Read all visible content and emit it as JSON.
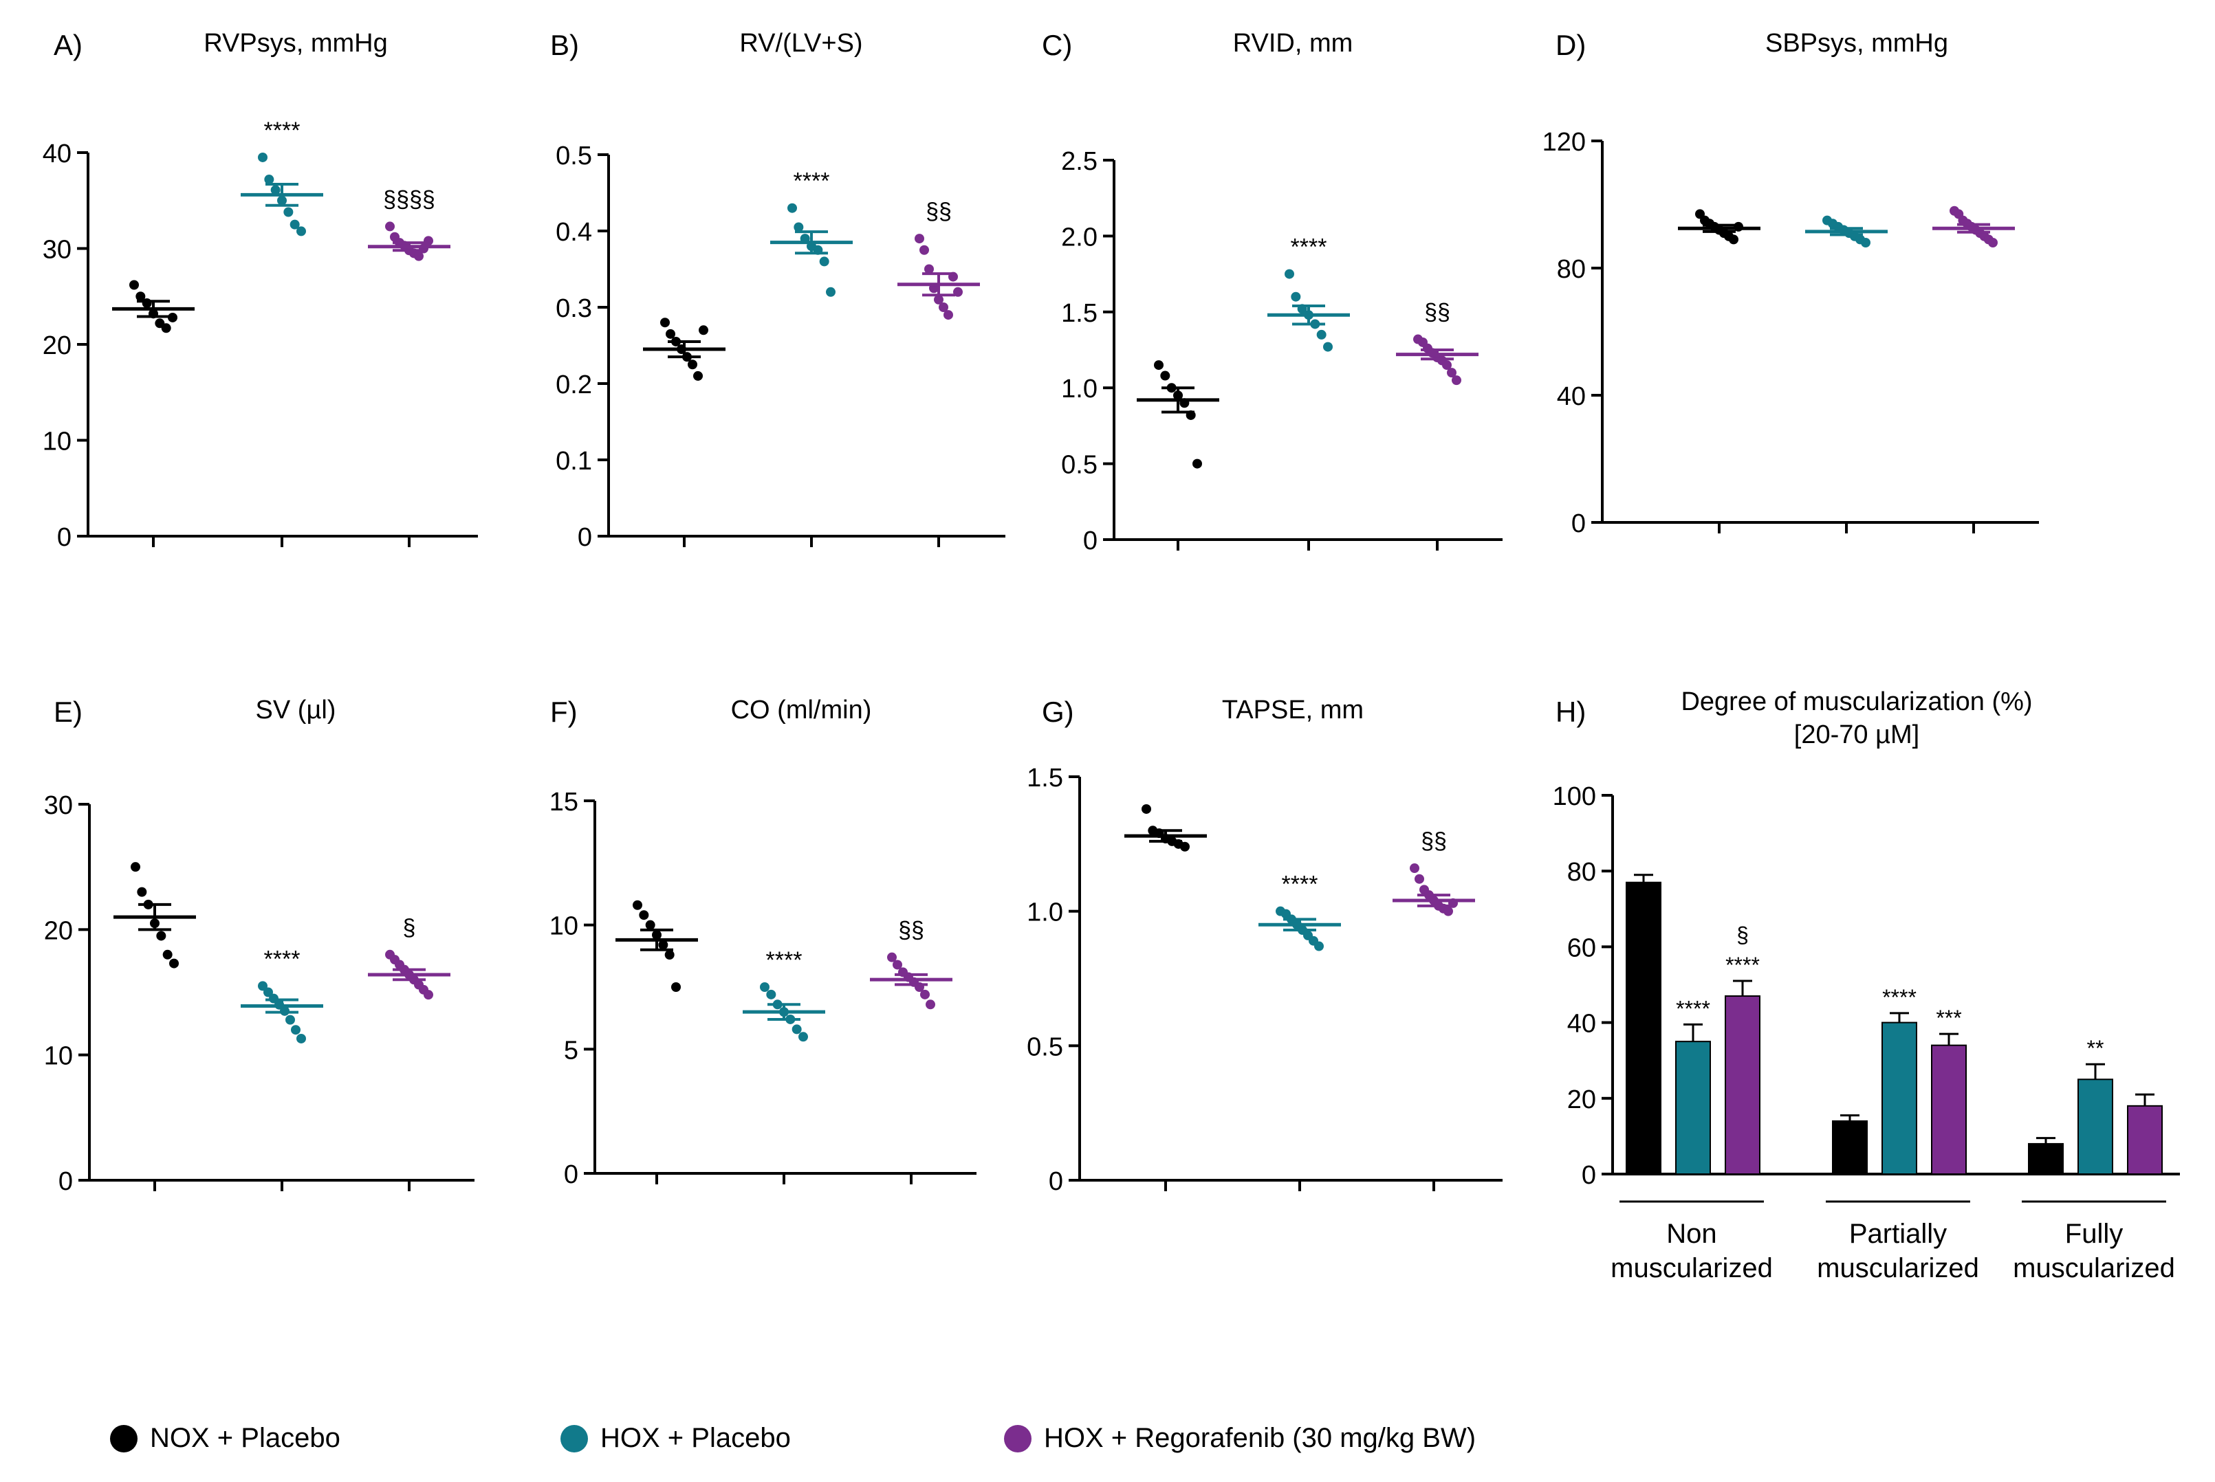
{
  "colors": {
    "nox": "#000000",
    "hox": "#117a8b",
    "rego": "#7b2d8e"
  },
  "legend": {
    "items": [
      {
        "label": "NOX + Placebo",
        "color": "#000000"
      },
      {
        "label": "HOX + Placebo",
        "color": "#117a8b"
      },
      {
        "label": "HOX + Regorafenib (30 mg/kg BW)",
        "color": "#7b2d8e"
      }
    ]
  },
  "chart_data": [
    {
      "id": "A",
      "type": "scatter",
      "panel_label": "A)",
      "title": "RVPsys, mmHg",
      "ylim": [
        0,
        40
      ],
      "yticks": [
        "0",
        "10",
        "20",
        "30",
        "40"
      ],
      "groups": [
        {
          "name": "NOX + Placebo",
          "mean": 23.7,
          "sem": 0.8,
          "points": [
            26.2,
            25.0,
            24.3,
            23.2,
            22.2,
            21.7,
            22.8
          ],
          "annotation": ""
        },
        {
          "name": "HOX + Placebo",
          "mean": 35.6,
          "sem": 1.1,
          "points": [
            39.5,
            37.2,
            36.1,
            35.0,
            33.8,
            32.5,
            31.8
          ],
          "annotation": "****"
        },
        {
          "name": "HOX + Regorafenib (30 mg/kg BW)",
          "mean": 30.2,
          "sem": 0.4,
          "points": [
            32.3,
            31.2,
            30.6,
            30.3,
            29.8,
            29.5,
            29.2,
            30.0,
            30.8
          ],
          "annotation": "§§§§"
        }
      ]
    },
    {
      "id": "B",
      "type": "scatter",
      "panel_label": "B)",
      "title": "RV/(LV+S)",
      "ylim": [
        0,
        0.5
      ],
      "yticks": [
        "0",
        "0.1",
        "0.2",
        "0.3",
        "0.4",
        "0.5"
      ],
      "groups": [
        {
          "name": "NOX + Placebo",
          "mean": 0.245,
          "sem": 0.01,
          "points": [
            0.28,
            0.265,
            0.255,
            0.245,
            0.235,
            0.225,
            0.21,
            0.27
          ],
          "annotation": ""
        },
        {
          "name": "HOX + Placebo",
          "mean": 0.385,
          "sem": 0.014,
          "points": [
            0.43,
            0.405,
            0.39,
            0.38,
            0.375,
            0.36,
            0.32
          ],
          "annotation": "****"
        },
        {
          "name": "HOX + Regorafenib (30 mg/kg BW)",
          "mean": 0.33,
          "sem": 0.014,
          "points": [
            0.39,
            0.375,
            0.35,
            0.325,
            0.31,
            0.3,
            0.29,
            0.34,
            0.32
          ],
          "annotation": "§§"
        }
      ]
    },
    {
      "id": "C",
      "type": "scatter",
      "panel_label": "C)",
      "title": "RVID, mm",
      "ylim": [
        0,
        2.5
      ],
      "yticks": [
        "0",
        "0.5",
        "1.0",
        "1.5",
        "2.0",
        "2.5"
      ],
      "groups": [
        {
          "name": "NOX + Placebo",
          "mean": 0.92,
          "sem": 0.08,
          "points": [
            1.15,
            1.08,
            1.0,
            0.95,
            0.9,
            0.82,
            0.5
          ],
          "annotation": ""
        },
        {
          "name": "HOX + Placebo",
          "mean": 1.48,
          "sem": 0.06,
          "points": [
            1.75,
            1.6,
            1.52,
            1.48,
            1.42,
            1.35,
            1.27
          ],
          "annotation": "****"
        },
        {
          "name": "HOX + Regorafenib (30 mg/kg BW)",
          "mean": 1.22,
          "sem": 0.03,
          "points": [
            1.32,
            1.3,
            1.26,
            1.23,
            1.2,
            1.18,
            1.15,
            1.1,
            1.05
          ],
          "annotation": "§§"
        }
      ]
    },
    {
      "id": "D",
      "type": "scatter",
      "panel_label": "D)",
      "title": "SBPsys, mmHg",
      "ylim": [
        0,
        120
      ],
      "yticks": [
        "0",
        "40",
        "80",
        "120"
      ],
      "groups": [
        {
          "name": "NOX + Placebo",
          "mean": 92.5,
          "sem": 1.0,
          "points": [
            97,
            95,
            94,
            93,
            92,
            91,
            90,
            89,
            93
          ],
          "annotation": ""
        },
        {
          "name": "HOX + Placebo",
          "mean": 91.5,
          "sem": 1.0,
          "points": [
            95,
            94,
            93,
            92,
            91,
            90,
            89,
            88
          ],
          "annotation": ""
        },
        {
          "name": "HOX + Regorafenib (30 mg/kg BW)",
          "mean": 92.5,
          "sem": 1.2,
          "points": [
            98,
            97,
            95,
            94,
            93,
            92,
            91,
            90,
            89,
            88
          ],
          "annotation": ""
        }
      ]
    },
    {
      "id": "E",
      "type": "scatter",
      "panel_label": "E)",
      "title": "SV (µl)",
      "ylim": [
        0,
        30
      ],
      "yticks": [
        "0",
        "10",
        "20",
        "30"
      ],
      "groups": [
        {
          "name": "NOX + Placebo",
          "mean": 21.0,
          "sem": 1.0,
          "points": [
            25.0,
            23.0,
            22.0,
            20.5,
            19.5,
            18.0,
            17.3
          ],
          "annotation": ""
        },
        {
          "name": "HOX + Placebo",
          "mean": 13.9,
          "sem": 0.5,
          "points": [
            15.5,
            15.0,
            14.5,
            14.0,
            13.5,
            12.8,
            12.0,
            11.3
          ],
          "annotation": "****"
        },
        {
          "name": "HOX + Regorafenib (30 mg/kg BW)",
          "mean": 16.4,
          "sem": 0.4,
          "points": [
            18.0,
            17.6,
            17.2,
            16.8,
            16.4,
            16.0,
            15.6,
            15.2,
            14.8
          ],
          "annotation": "§"
        }
      ]
    },
    {
      "id": "F",
      "type": "scatter",
      "panel_label": "F)",
      "title": "CO (ml/min)",
      "ylim": [
        0,
        15
      ],
      "yticks": [
        "0",
        "5",
        "10",
        "15"
      ],
      "groups": [
        {
          "name": "NOX + Placebo",
          "mean": 9.4,
          "sem": 0.4,
          "points": [
            10.8,
            10.4,
            10.0,
            9.6,
            9.2,
            8.8,
            7.5
          ],
          "annotation": ""
        },
        {
          "name": "HOX + Placebo",
          "mean": 6.5,
          "sem": 0.3,
          "points": [
            7.5,
            7.2,
            6.8,
            6.5,
            6.2,
            5.8,
            5.5
          ],
          "annotation": "****"
        },
        {
          "name": "HOX + Regorafenib (30 mg/kg BW)",
          "mean": 7.8,
          "sem": 0.2,
          "points": [
            8.7,
            8.4,
            8.1,
            7.9,
            7.7,
            7.5,
            7.2,
            6.8
          ],
          "annotation": "§§"
        }
      ]
    },
    {
      "id": "G",
      "type": "scatter",
      "panel_label": "G)",
      "title": "TAPSE, mm",
      "ylim": [
        0,
        1.5
      ],
      "yticks": [
        "0",
        "0.5",
        "1.0",
        "1.5"
      ],
      "groups": [
        {
          "name": "NOX + Placebo",
          "mean": 1.28,
          "sem": 0.02,
          "points": [
            1.38,
            1.3,
            1.29,
            1.27,
            1.26,
            1.25,
            1.24
          ],
          "annotation": ""
        },
        {
          "name": "HOX + Placebo",
          "mean": 0.95,
          "sem": 0.02,
          "points": [
            1.0,
            0.99,
            0.97,
            0.95,
            0.93,
            0.91,
            0.89,
            0.87
          ],
          "annotation": "****"
        },
        {
          "name": "HOX + Regorafenib (30 mg/kg BW)",
          "mean": 1.04,
          "sem": 0.02,
          "points": [
            1.16,
            1.12,
            1.08,
            1.06,
            1.04,
            1.02,
            1.01,
            1.0,
            1.03
          ],
          "annotation": "§§"
        }
      ]
    },
    {
      "id": "H",
      "type": "bar",
      "panel_label": "H)",
      "title": "Degree of muscularization (%)",
      "subtitle": "[20-70 µM]",
      "ylim": [
        0,
        100
      ],
      "yticks": [
        "0",
        "20",
        "40",
        "60",
        "80",
        "100"
      ],
      "categories": [
        "Non muscularized",
        "Partially muscularized",
        "Fully muscularized"
      ],
      "category_lines": [
        [
          "Non",
          "muscularized"
        ],
        [
          "Partially",
          "muscularized"
        ],
        [
          "Fully",
          "muscularized"
        ]
      ],
      "series": [
        {
          "name": "NOX + Placebo",
          "values": [
            77,
            14,
            8
          ],
          "errors": [
            2,
            1.5,
            1.5
          ],
          "annotations": [
            "",
            "",
            ""
          ]
        },
        {
          "name": "HOX + Placebo",
          "values": [
            35,
            40,
            25
          ],
          "errors": [
            4.5,
            2.5,
            4
          ],
          "annotations": [
            "****",
            "****",
            "**"
          ]
        },
        {
          "name": "HOX + Regorafenib (30 mg/kg BW)",
          "values": [
            47,
            34,
            18
          ],
          "errors": [
            4,
            3,
            3
          ],
          "annotations": [
            "§ ****",
            "***",
            ""
          ]
        }
      ]
    }
  ]
}
